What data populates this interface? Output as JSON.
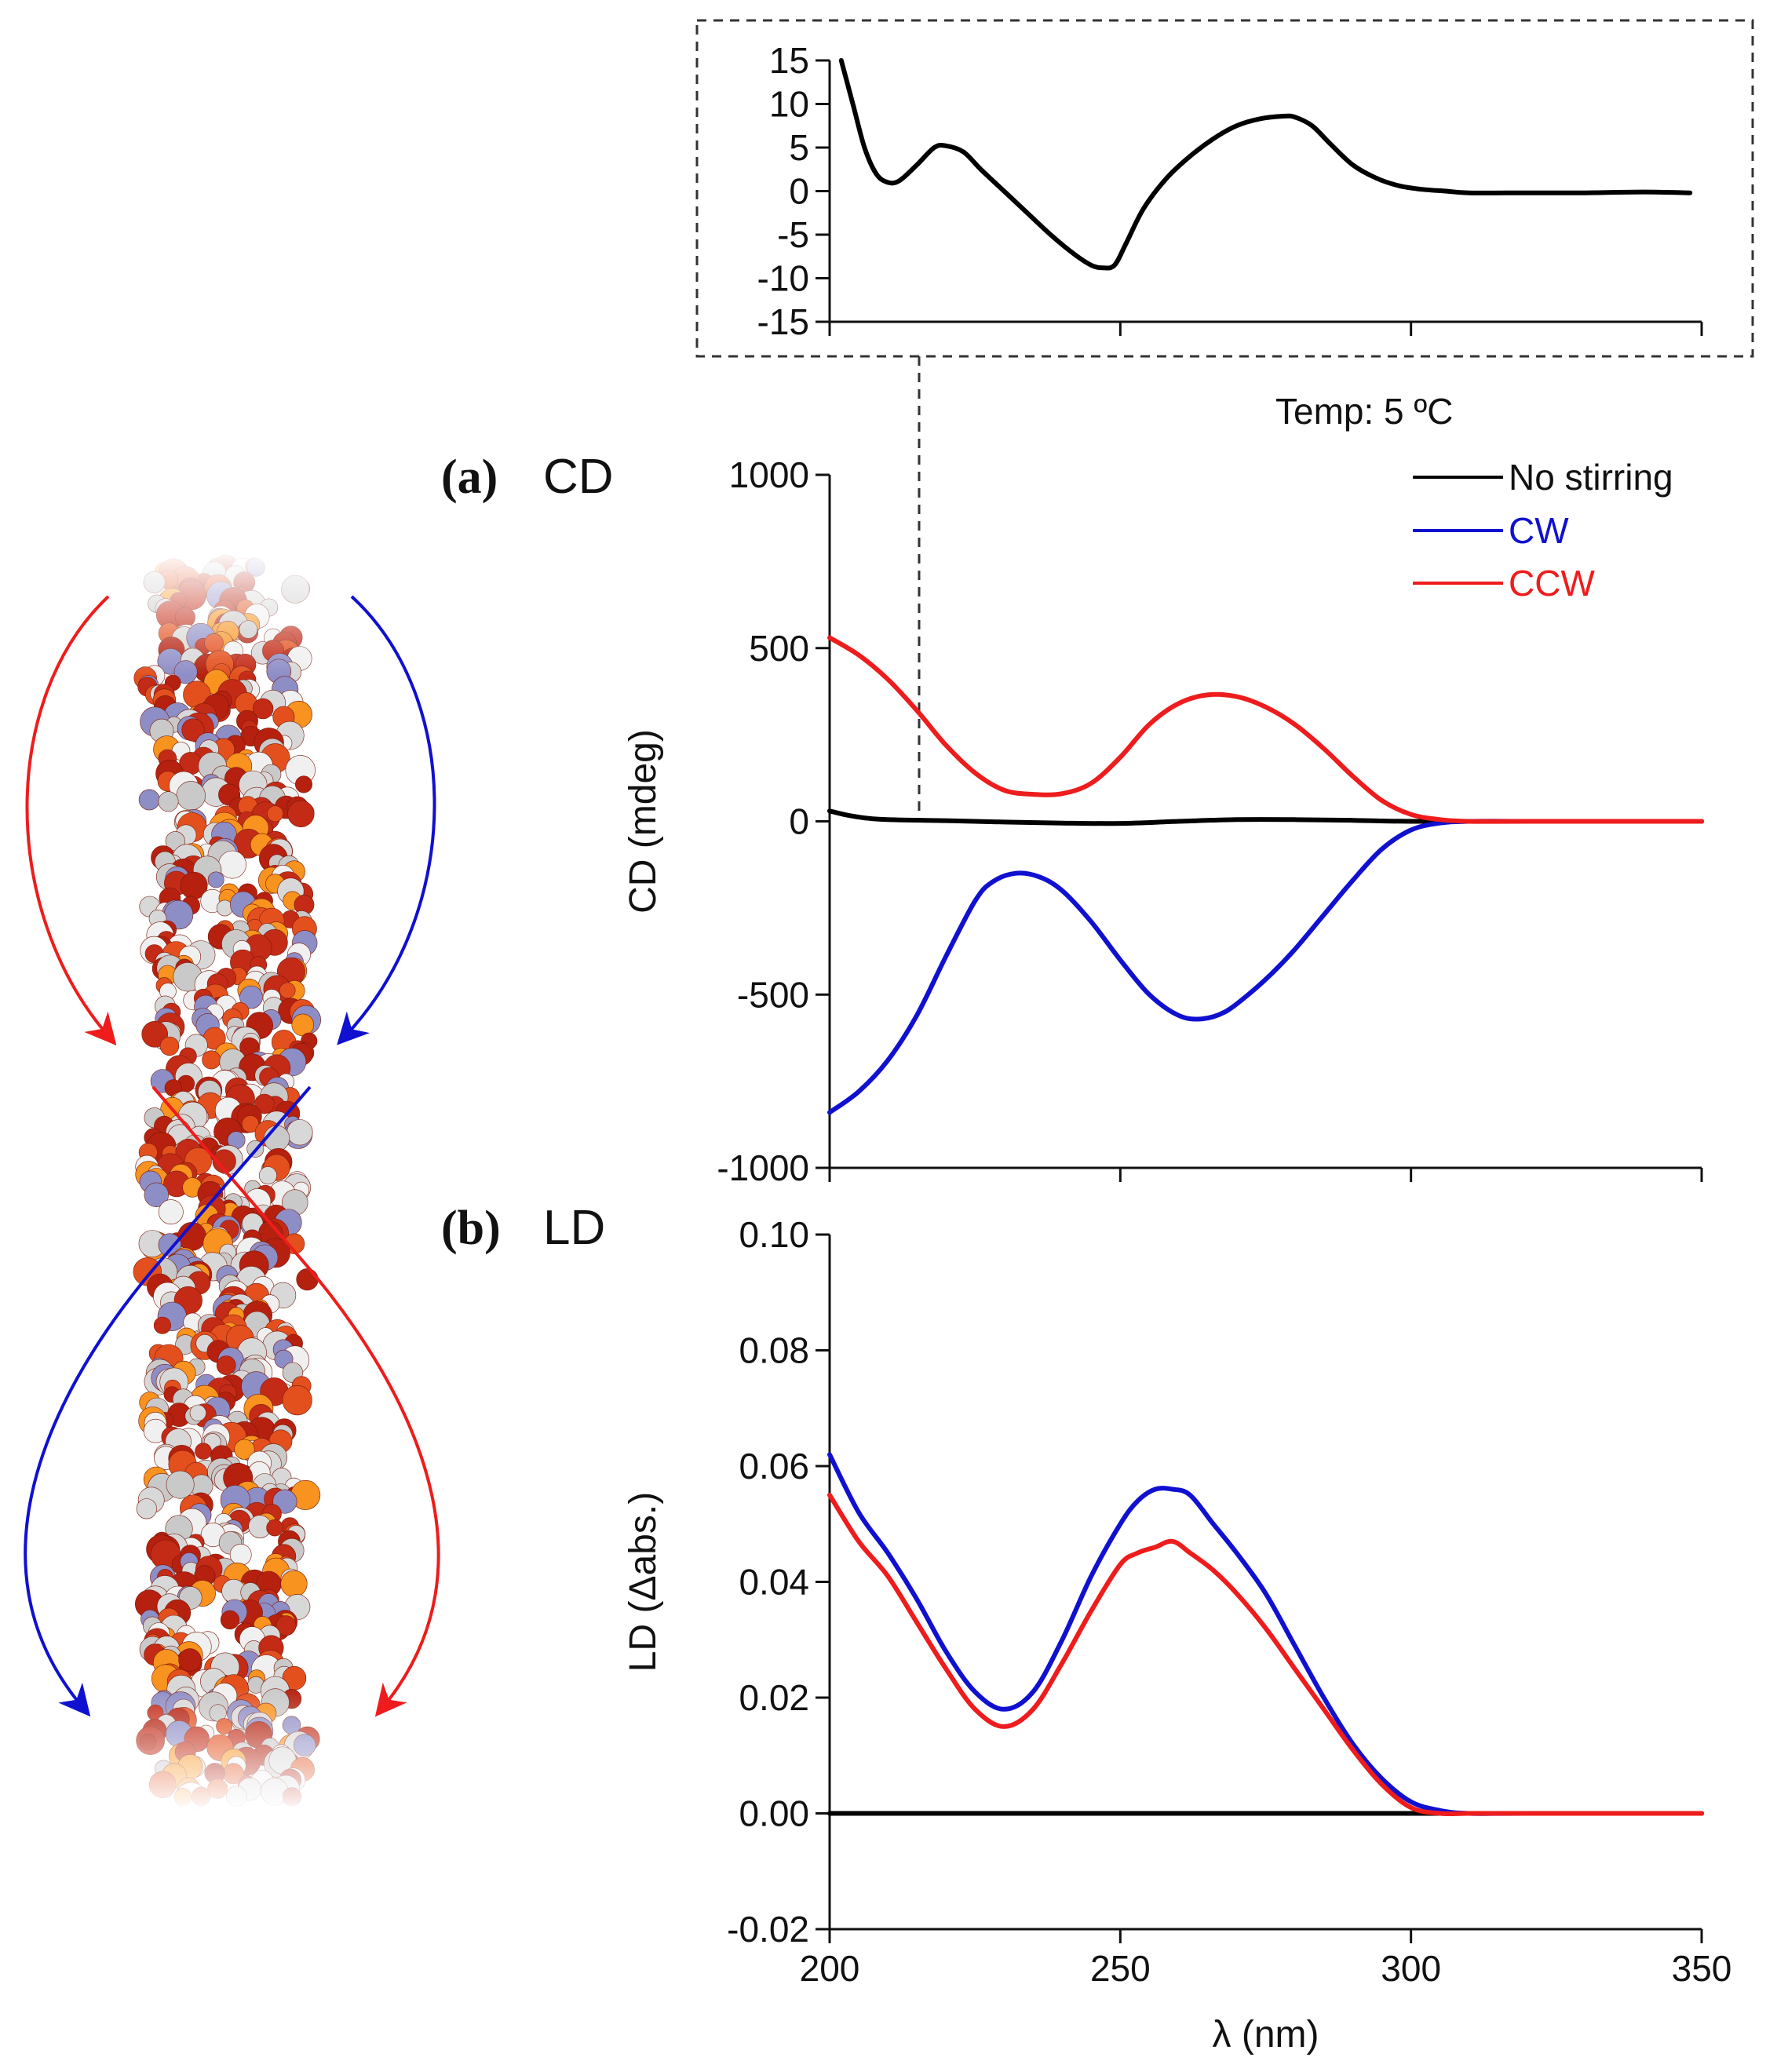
{
  "colors": {
    "no_stirring": "#000000",
    "cw": "#1010d0",
    "ccw": "#ee1c1c",
    "axis": "#111111"
  },
  "panels": {
    "a_letter": "(a)",
    "a_name": "CD",
    "b_letter": "(b)",
    "b_name": "LD",
    "temperature": "Temp: 5 ºC"
  },
  "illustration": {
    "type": "dna-double-helix-spacefill",
    "arrows": [
      "red-ccw",
      "blue-cw"
    ]
  },
  "chart_data": [
    {
      "id": "inset",
      "type": "line",
      "title": "",
      "xlabel": "",
      "ylabel": "",
      "xlim": [
        200,
        350
      ],
      "ylim": [
        -15,
        15
      ],
      "yticks": [
        "15",
        "10",
        "5",
        "0",
        "-5",
        "-10",
        "-15"
      ],
      "xticks": [],
      "series": [
        {
          "color_key": "no_stirring",
          "x": [
            202,
            204,
            206,
            208,
            210,
            212,
            215,
            218,
            220,
            223,
            226,
            230,
            234,
            238,
            242,
            245,
            247,
            249,
            251,
            254,
            258,
            262,
            266,
            270,
            274,
            278,
            280,
            283,
            286,
            290,
            294,
            298,
            302,
            306,
            310,
            320,
            330,
            340,
            348
          ],
          "y": [
            15,
            10,
            5,
            2,
            1,
            1.2,
            3,
            5,
            5.2,
            4.5,
            2.5,
            0,
            -2.5,
            -5,
            -7.2,
            -8.5,
            -8.8,
            -8.5,
            -6,
            -2,
            1.5,
            4,
            6,
            7.5,
            8.3,
            8.6,
            8.5,
            7.5,
            5.5,
            3,
            1.5,
            0.6,
            0.2,
            0,
            -0.2,
            -0.2,
            -0.2,
            -0.1,
            -0.2
          ]
        }
      ]
    },
    {
      "id": "cd",
      "type": "line",
      "title": "",
      "xlabel": "",
      "ylabel": "CD (mdeg)",
      "xlim": [
        200,
        350
      ],
      "ylim": [
        -1000,
        1000
      ],
      "yticks": [
        "1000",
        "500",
        "0",
        "-500",
        "-1000"
      ],
      "xticks": [],
      "legend_position": "top-right",
      "series": [
        {
          "name": "No stirring",
          "color_key": "no_stirring",
          "x": [
            200,
            203,
            206,
            210,
            220,
            230,
            240,
            250,
            260,
            270,
            280,
            290,
            300,
            320,
            350
          ],
          "y": [
            30,
            18,
            10,
            5,
            2,
            -2,
            -5,
            -6,
            0,
            5,
            5,
            3,
            0,
            0,
            0
          ]
        },
        {
          "name": "CW",
          "color_key": "cw",
          "x": [
            200,
            205,
            210,
            215,
            220,
            225,
            228,
            232,
            236,
            240,
            245,
            250,
            255,
            260,
            264,
            268,
            272,
            276,
            280,
            285,
            290,
            295,
            300,
            305,
            310,
            320,
            350
          ],
          "y": [
            -840,
            -780,
            -690,
            -560,
            -390,
            -230,
            -175,
            -150,
            -160,
            -200,
            -290,
            -400,
            -500,
            -560,
            -570,
            -550,
            -500,
            -440,
            -370,
            -270,
            -170,
            -80,
            -25,
            -5,
            0,
            0,
            0
          ]
        },
        {
          "name": "CCW",
          "color_key": "ccw",
          "x": [
            200,
            205,
            210,
            215,
            220,
            225,
            230,
            235,
            240,
            245,
            250,
            255,
            260,
            265,
            270,
            275,
            280,
            285,
            290,
            295,
            300,
            305,
            310,
            320,
            350
          ],
          "y": [
            530,
            480,
            410,
            320,
            220,
            140,
            90,
            78,
            80,
            110,
            185,
            280,
            340,
            365,
            360,
            330,
            280,
            210,
            130,
            60,
            20,
            5,
            0,
            0,
            0
          ]
        }
      ]
    },
    {
      "id": "ld",
      "type": "line",
      "title": "",
      "xlabel": "λ (nm)",
      "ylabel": "LD (Δabs.)",
      "xlim": [
        200,
        350
      ],
      "ylim": [
        -0.02,
        0.1
      ],
      "yticks": [
        "0.10",
        "0.08",
        "0.06",
        "0.04",
        "0.02",
        "0.00",
        "-0.02"
      ],
      "xticks": [
        "200",
        "250",
        "300",
        "350"
      ],
      "series": [
        {
          "name": "No stirring",
          "color_key": "no_stirring",
          "x": [
            200,
            220,
            240,
            260,
            280,
            300,
            320,
            350
          ],
          "y": [
            0,
            0,
            0,
            0,
            0,
            0,
            0,
            0
          ]
        },
        {
          "name": "CW",
          "color_key": "cw",
          "x": [
            200,
            205,
            210,
            215,
            220,
            225,
            230,
            235,
            240,
            245,
            250,
            253,
            256,
            259,
            262,
            266,
            270,
            275,
            280,
            285,
            290,
            295,
            300,
            305,
            310,
            320,
            350
          ],
          "y": [
            0.062,
            0.052,
            0.045,
            0.037,
            0.028,
            0.021,
            0.018,
            0.021,
            0.03,
            0.041,
            0.05,
            0.054,
            0.056,
            0.056,
            0.055,
            0.05,
            0.045,
            0.038,
            0.029,
            0.02,
            0.012,
            0.006,
            0.002,
            0.0005,
            0,
            0,
            0
          ]
        },
        {
          "name": "CCW",
          "color_key": "ccw",
          "x": [
            200,
            205,
            210,
            215,
            220,
            225,
            230,
            235,
            240,
            245,
            250,
            253,
            256,
            259,
            262,
            266,
            270,
            275,
            280,
            285,
            290,
            295,
            300,
            305,
            310,
            320,
            350
          ],
          "y": [
            0.055,
            0.047,
            0.041,
            0.033,
            0.025,
            0.018,
            0.015,
            0.018,
            0.026,
            0.035,
            0.043,
            0.045,
            0.046,
            0.047,
            0.045,
            0.042,
            0.038,
            0.032,
            0.025,
            0.018,
            0.011,
            0.005,
            0.001,
            0,
            0,
            0,
            0
          ]
        }
      ]
    }
  ]
}
